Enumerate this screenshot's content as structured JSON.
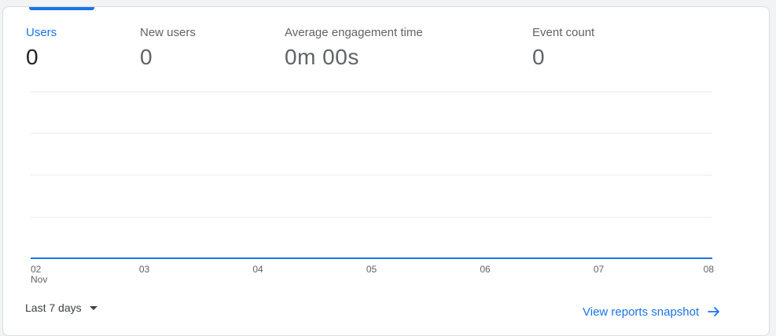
{
  "metrics": [
    {
      "label": "Users",
      "value": "0",
      "active": true
    },
    {
      "label": "New users",
      "value": "0",
      "active": false
    },
    {
      "label": "Average engagement time",
      "value": "0m 00s",
      "active": false
    },
    {
      "label": "Event count",
      "value": "0",
      "active": false
    }
  ],
  "chart_data": {
    "type": "line",
    "x": [
      "02 Nov",
      "03",
      "04",
      "05",
      "06",
      "07",
      "08"
    ],
    "series": [
      {
        "values": [
          0,
          0,
          0,
          0,
          0,
          0,
          0
        ]
      }
    ],
    "grid": true
  },
  "footer": {
    "date_range_label": "Last 7 days",
    "view_link_label": "View reports snapshot"
  },
  "colors": {
    "accent": "#1a73e8",
    "text_secondary": "#5f6368",
    "gridline": "#e8eaed"
  },
  "icons": {
    "dropdown": "caret-down-icon",
    "link_arrow": "arrow-right-icon"
  }
}
